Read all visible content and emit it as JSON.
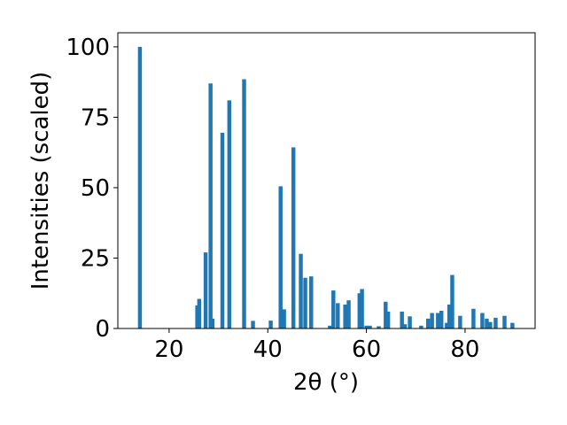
{
  "chart_data": {
    "type": "bar",
    "xlabel": "2θ (°)",
    "ylabel": "Intensities (scaled)",
    "x": [
      14.08,
      25.7,
      26.1,
      27.4,
      28.4,
      28.8,
      30.8,
      32.2,
      35.2,
      37.0,
      40.6,
      42.6,
      43.3,
      45.2,
      46.7,
      47.6,
      48.8,
      52.6,
      53.3,
      54.2,
      55.7,
      56.4,
      58.6,
      59.1,
      60.0,
      60.7,
      62.5,
      63.9,
      64.4,
      67.2,
      67.8,
      68.8,
      71.1,
      72.5,
      73.3,
      74.5,
      75.2,
      76.3,
      76.8,
      77.4,
      79.0,
      81.7,
      83.5,
      84.4,
      85.1,
      86.2,
      88.0,
      89.6
    ],
    "values": [
      100,
      8.2,
      10.5,
      27,
      87,
      3.5,
      69.5,
      81,
      88.5,
      2.7,
      2.8,
      50.5,
      6.8,
      64.3,
      26.5,
      18,
      18.5,
      1,
      13.5,
      9,
      8.5,
      10,
      12.5,
      14,
      1,
      1,
      0.8,
      9.5,
      6,
      6,
      1.5,
      4.3,
      1,
      3.5,
      5.5,
      5.5,
      6.3,
      2,
      8.5,
      19,
      4.5,
      7,
      5.5,
      3.5,
      2.3,
      3.8,
      4.5,
      2
    ],
    "color": "#1f77b4",
    "xlim": [
      9.6,
      94.2
    ],
    "xticks": [
      20,
      40,
      60,
      80
    ],
    "ylim": [
      0,
      105
    ],
    "yticks": [
      0,
      25,
      50,
      75,
      100
    ]
  }
}
